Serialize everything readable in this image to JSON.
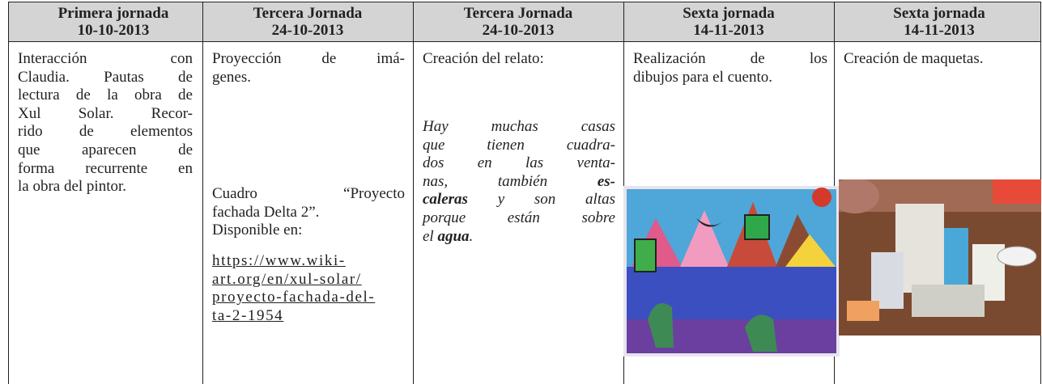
{
  "header": {
    "cells": [
      {
        "title": "Primera jornada",
        "date": "10-10-2013"
      },
      {
        "title": "Tercera Jornada",
        "date": "24-10-2013"
      },
      {
        "title": "Tercera Jornada",
        "date": "24-10-2013"
      },
      {
        "title": "Sexta jornada",
        "date": "14-11-2013"
      },
      {
        "title": "Sexta jornada",
        "date": "14-11-2013"
      }
    ]
  },
  "body": {
    "columns": [
      {
        "blocks": [
          {
            "lines": [
              "Interacción con",
              "Claudia. Pautas de",
              "lectura de la obra de",
              "Xul Solar. Recor-",
              "rido de elementos",
              "que aparecen de",
              "forma recurrente en",
              "la obra del pintor."
            ]
          }
        ]
      },
      {
        "blocks": [
          {
            "lines": [
              "Proyección de imá-",
              "genes."
            ]
          },
          {
            "lines": [
              "Cuadro “Proyecto",
              "fachada Delta 2”.",
              "Disponible en:"
            ]
          },
          {
            "lines": [
              "https://www.wiki-",
              "art.org/en/xul-solar/",
              "proyecto-fachada-del-",
              "ta-2-1954"
            ]
          }
        ]
      },
      {
        "blocks": [
          {
            "lines": [
              "Creación del relato:"
            ]
          },
          {
            "lines": [
              "Hay muchas casas",
              "que tienen cuadra-",
              "dos en las venta-",
              [
                "nas, también ",
                {
                  "text": "es-",
                  "bold": true
                }
              ],
              [
                {
                  "text": "caleras",
                  "bold": true
                },
                " y son altas"
              ],
              "porque están sobre",
              [
                "el ",
                {
                  "text": "agua",
                  "bold": true
                },
                "."
              ]
            ]
          }
        ]
      },
      {
        "blocks": [
          {
            "lines": [
              "Realización de los",
              "dibujos para el cuento."
            ]
          }
        ]
      },
      {
        "blocks": [
          {
            "lines": [
              "Creación de maquetas."
            ]
          }
        ]
      }
    ]
  }
}
